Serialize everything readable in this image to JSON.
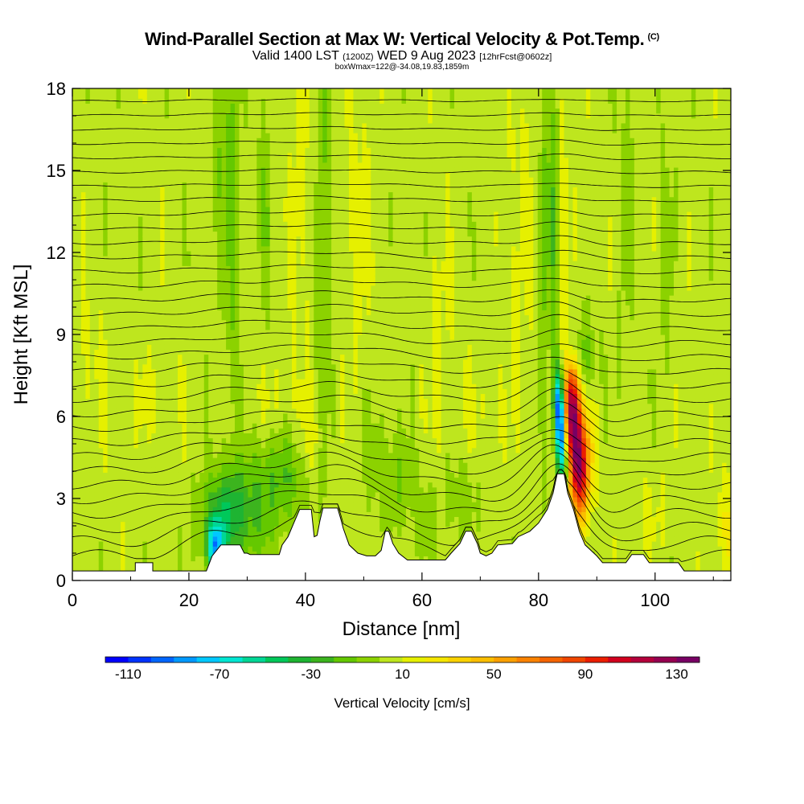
{
  "title": {
    "main": "Wind-Parallel Section at Max W: Vertical Velocity & Pot.Temp.",
    "copyright": "(C)",
    "valid_a": "Valid 1400 LST",
    "valid_z": "(1200Z)",
    "valid_b": "WED 9 Aug 2023",
    "fcst": "[12hrFcst@0602z]",
    "box": "boxWmax=122@-34.08,19.83,1859m"
  },
  "chart_data": {
    "type": "heatmap",
    "title": "Wind-Parallel Section at Max W: Vertical Velocity & Pot.Temp.",
    "xlabel": "Distance [nm]",
    "ylabel": "Height [Kft MSL]",
    "xlim": [
      0,
      113
    ],
    "ylim": [
      0,
      18
    ],
    "xticks": [
      0,
      20,
      40,
      60,
      80,
      100
    ],
    "yticks": [
      0,
      3,
      6,
      9,
      12,
      15,
      18
    ],
    "colorbar": {
      "label": "Vertical Velocity [cm/s]",
      "min": -120,
      "max": 140,
      "step": 10,
      "tick_labels": [
        "-110",
        "-70",
        "-30",
        "10",
        "50",
        "90",
        "130"
      ],
      "tick_values": [
        -110,
        -70,
        -30,
        10,
        50,
        90,
        130
      ],
      "colors": [
        "#0000ff",
        "#0033ff",
        "#0066ff",
        "#0099ff",
        "#00c8ff",
        "#00e6d2",
        "#00d796",
        "#00c85a",
        "#1eb432",
        "#3cb41e",
        "#64c800",
        "#8cd200",
        "#bee61e",
        "#e6f000",
        "#f5e600",
        "#fad200",
        "#fabe00",
        "#faa000",
        "#fa8200",
        "#f56400",
        "#f04600",
        "#eb1e00",
        "#d2001e",
        "#b4003c",
        "#960050",
        "#780064"
      ]
    },
    "background_w": 5,
    "terrain": [
      {
        "x": 0,
        "h": 0.35
      },
      {
        "x": 10.8,
        "h": 0.35
      },
      {
        "x": 10.8,
        "h": 0.65
      },
      {
        "x": 13.8,
        "h": 0.65
      },
      {
        "x": 13.8,
        "h": 0.35
      },
      {
        "x": 23,
        "h": 0.35
      },
      {
        "x": 24,
        "h": 0.9
      },
      {
        "x": 25.5,
        "h": 1.3
      },
      {
        "x": 28.8,
        "h": 1.3
      },
      {
        "x": 29.5,
        "h": 1.0
      },
      {
        "x": 30,
        "h": 1.0
      },
      {
        "x": 30.5,
        "h": 0.95
      },
      {
        "x": 35.5,
        "h": 0.95
      },
      {
        "x": 36,
        "h": 1.3
      },
      {
        "x": 37,
        "h": 1.6
      },
      {
        "x": 38,
        "h": 2.1
      },
      {
        "x": 39,
        "h": 2.6
      },
      {
        "x": 41,
        "h": 2.6
      },
      {
        "x": 41.5,
        "h": 1.6
      },
      {
        "x": 42,
        "h": 1.65
      },
      {
        "x": 42.5,
        "h": 2.2
      },
      {
        "x": 43,
        "h": 2.65
      },
      {
        "x": 45.5,
        "h": 2.65
      },
      {
        "x": 46,
        "h": 2.3
      },
      {
        "x": 46.5,
        "h": 1.9
      },
      {
        "x": 47.5,
        "h": 1.3
      },
      {
        "x": 49,
        "h": 1.0
      },
      {
        "x": 50.5,
        "h": 0.9
      },
      {
        "x": 52,
        "h": 0.9
      },
      {
        "x": 52.5,
        "h": 1.0
      },
      {
        "x": 53,
        "h": 1.1
      },
      {
        "x": 53.7,
        "h": 1.8
      },
      {
        "x": 54.3,
        "h": 1.8
      },
      {
        "x": 55,
        "h": 1.35
      },
      {
        "x": 56,
        "h": 1.0
      },
      {
        "x": 57.5,
        "h": 0.75
      },
      {
        "x": 64,
        "h": 0.75
      },
      {
        "x": 65,
        "h": 1.0
      },
      {
        "x": 66.5,
        "h": 1.35
      },
      {
        "x": 67.5,
        "h": 1.8
      },
      {
        "x": 68.5,
        "h": 1.8
      },
      {
        "x": 69.5,
        "h": 1.35
      },
      {
        "x": 70,
        "h": 1.0
      },
      {
        "x": 71,
        "h": 0.9
      },
      {
        "x": 72,
        "h": 1.0
      },
      {
        "x": 73,
        "h": 1.3
      },
      {
        "x": 75.5,
        "h": 1.35
      },
      {
        "x": 76.5,
        "h": 1.6
      },
      {
        "x": 78.5,
        "h": 1.8
      },
      {
        "x": 80,
        "h": 2.1
      },
      {
        "x": 81.5,
        "h": 2.6
      },
      {
        "x": 82.5,
        "h": 3.2
      },
      {
        "x": 83.2,
        "h": 3.9
      },
      {
        "x": 84.4,
        "h": 3.9
      },
      {
        "x": 85,
        "h": 3.2
      },
      {
        "x": 86,
        "h": 2.6
      },
      {
        "x": 87,
        "h": 1.8
      },
      {
        "x": 88,
        "h": 1.3
      },
      {
        "x": 89,
        "h": 1.1
      },
      {
        "x": 90,
        "h": 0.9
      },
      {
        "x": 91,
        "h": 0.65
      },
      {
        "x": 95,
        "h": 0.65
      },
      {
        "x": 96,
        "h": 0.95
      },
      {
        "x": 98,
        "h": 0.95
      },
      {
        "x": 99,
        "h": 0.65
      },
      {
        "x": 104,
        "h": 0.65
      },
      {
        "x": 105,
        "h": 0.35
      },
      {
        "x": 113,
        "h": 0.35
      }
    ],
    "w_features": [
      {
        "x": 24.5,
        "h": 1.2,
        "sx": 1.0,
        "sh": 0.7,
        "amp": -75
      },
      {
        "x": 26,
        "h": 2.5,
        "sx": 2.5,
        "sh": 1.2,
        "amp": -25
      },
      {
        "x": 29,
        "h": 2.2,
        "sx": 4.0,
        "sh": 1.3,
        "amp": -22
      },
      {
        "x": 36,
        "h": 3.8,
        "sx": 4.0,
        "sh": 1.2,
        "amp": -22
      },
      {
        "x": 41,
        "h": 5.0,
        "sx": 1.5,
        "sh": 1.2,
        "amp": 14
      },
      {
        "x": 43,
        "h": 12.5,
        "sx": 0.8,
        "sh": 5.0,
        "amp": -18
      },
      {
        "x": 27.5,
        "h": 13,
        "sx": 0.9,
        "sh": 5.0,
        "amp": -20
      },
      {
        "x": 25.5,
        "h": 16,
        "sx": 0.9,
        "sh": 2.5,
        "amp": -15
      },
      {
        "x": 39,
        "h": 14,
        "sx": 1.2,
        "sh": 4.0,
        "amp": 10
      },
      {
        "x": 33,
        "h": 14,
        "sx": 1.0,
        "sh": 3.0,
        "amp": -12
      },
      {
        "x": 49,
        "h": 13,
        "sx": 1.5,
        "sh": 4.0,
        "amp": 9
      },
      {
        "x": 56,
        "h": 3.6,
        "sx": 2.0,
        "sh": 1.2,
        "amp": -14
      },
      {
        "x": 61,
        "h": 2.2,
        "sx": 1.5,
        "sh": 1.0,
        "amp": -12
      },
      {
        "x": 63,
        "h": 9.0,
        "sx": 1.5,
        "sh": 3.0,
        "amp": 8
      },
      {
        "x": 67,
        "h": 3.0,
        "sx": 2.0,
        "sh": 1.2,
        "amp": -12
      },
      {
        "x": 77,
        "h": 13,
        "sx": 1.5,
        "sh": 4.0,
        "amp": 8
      },
      {
        "x": 81,
        "h": 13,
        "sx": 0.6,
        "sh": 5.0,
        "amp": -20
      },
      {
        "x": 82.7,
        "h": 14,
        "sx": 0.5,
        "sh": 5.0,
        "amp": -22
      },
      {
        "x": 84.3,
        "h": 12,
        "sx": 0.45,
        "sh": 6.0,
        "amp": 15
      },
      {
        "x": 83.8,
        "h": 5.3,
        "sx": 0.5,
        "sh": 1.2,
        "amp": -95
      },
      {
        "x": 83.4,
        "h": 6.5,
        "sx": 0.6,
        "sh": 0.9,
        "amp": -60
      },
      {
        "x": 84.8,
        "h": 4.3,
        "sx": 0.55,
        "sh": 0.7,
        "amp": -45
      },
      {
        "x": 86,
        "h": 5.5,
        "sx": 1.0,
        "sh": 1.5,
        "amp": 120
      },
      {
        "x": 87.2,
        "h": 3.8,
        "sx": 0.9,
        "sh": 1.2,
        "amp": 75
      },
      {
        "x": 85.5,
        "h": 7.0,
        "sx": 0.9,
        "sh": 0.9,
        "amp": 55
      },
      {
        "x": 88.5,
        "h": 4.8,
        "sx": 1.0,
        "sh": 1.5,
        "amp": 28
      },
      {
        "x": 86.5,
        "h": 7.5,
        "sx": 2.2,
        "sh": 1.2,
        "amp": -18
      },
      {
        "x": 88,
        "h": 8.2,
        "sx": 1.5,
        "sh": 1.0,
        "amp": -12
      },
      {
        "x": 112,
        "h": 2.0,
        "sx": 1.2,
        "sh": 1.3,
        "amp": 15
      },
      {
        "x": 35,
        "h": 6.5,
        "sx": 3.0,
        "sh": 1.0,
        "amp": 6
      },
      {
        "x": 70,
        "h": 6.0,
        "sx": 3.0,
        "sh": 1.5,
        "amp": 6
      },
      {
        "x": 14,
        "h": 6.8,
        "sx": 3.0,
        "sh": 1.0,
        "amp": 7
      },
      {
        "x": 3,
        "h": 8.0,
        "sx": 3.0,
        "sh": 2.0,
        "amp": 6
      },
      {
        "x": 52,
        "h": 4.5,
        "sx": 2.0,
        "sh": 1.5,
        "amp": -8
      },
      {
        "x": 100,
        "h": 2.5,
        "sx": 3.0,
        "sh": 1.2,
        "amp": 6
      },
      {
        "x": 95,
        "h": 14,
        "sx": 1.0,
        "sh": 4.0,
        "amp": -10
      },
      {
        "x": 102,
        "h": 12,
        "sx": 1.0,
        "sh": 4.0,
        "amp": -8
      }
    ]
  }
}
